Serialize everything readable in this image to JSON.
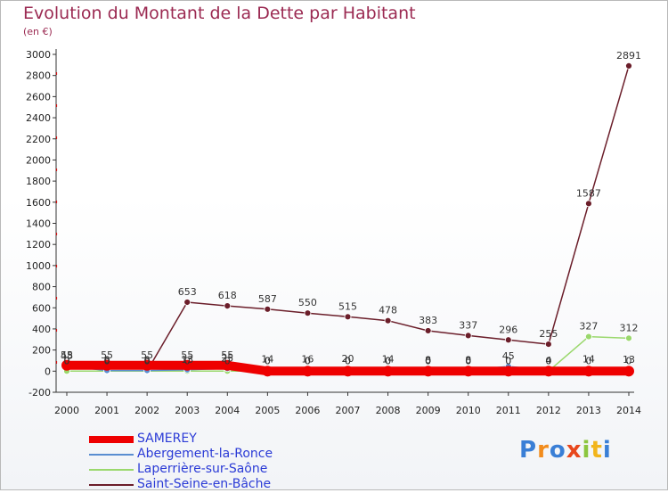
{
  "title": "Evolution du Montant de la Dette par Habitant",
  "subtitle": "(en €)",
  "logo_text": "Proxiti",
  "chart_data": {
    "type": "line",
    "title": "Evolution du Montant de la Dette par Habitant",
    "subtitle": "(en €)",
    "x": [
      "2000",
      "2001",
      "2002",
      "2003",
      "2004",
      "2005",
      "2006",
      "2007",
      "2008",
      "2009",
      "2010",
      "2011",
      "2012",
      "2013",
      "2014"
    ],
    "ylim": [
      -200,
      3000
    ],
    "yticks": [
      -200,
      0,
      200,
      400,
      600,
      800,
      1000,
      1200,
      1400,
      1600,
      1800,
      2000,
      2200,
      2400,
      2600,
      2800,
      3000
    ],
    "grid": false,
    "legend_position": "bottom-left",
    "series": [
      {
        "name": "SAMEREY",
        "color": "#ee0000",
        "values": [
          55,
          55,
          55,
          55,
          55,
          0,
          0,
          0,
          0,
          0,
          0,
          0,
          0,
          0,
          0
        ],
        "labels": [
          "55",
          "55",
          "55",
          "55",
          "55",
          "0",
          "0",
          "0",
          "0",
          "0",
          "0",
          "0",
          "0",
          "0",
          "0"
        ]
      },
      {
        "name": "Abergement-la-Ronce",
        "color": "#5a8ed1",
        "values": [
          48,
          6,
          6,
          13,
          25,
          14,
          16,
          20,
          14,
          8,
          8,
          45,
          4,
          14,
          13
        ],
        "labels": [
          "48",
          "6",
          "6",
          "13",
          "25",
          "14",
          "16",
          "20",
          "14",
          "8",
          "8",
          "45",
          "4",
          "14",
          "13"
        ]
      },
      {
        "name": "Laperrière-sur-Saône",
        "color": "#9ad86c",
        "values": [
          0,
          0,
          0,
          0,
          0,
          0,
          0,
          0,
          0,
          0,
          0,
          0,
          0,
          327,
          312
        ],
        "labels": [
          "0",
          "0",
          "0",
          "0",
          "0",
          "0",
          "0",
          "0",
          "0",
          "0",
          "0",
          "0",
          "0",
          "327",
          "312"
        ]
      },
      {
        "name": "Saint-Seine-en-Bâche",
        "color": "#6b1e2a",
        "values": [
          0,
          0,
          0,
          653,
          618,
          587,
          550,
          515,
          478,
          383,
          337,
          296,
          255,
          1587,
          2891
        ],
        "labels": [
          "0",
          "0",
          "0",
          "653",
          "618",
          "587",
          "550",
          "515",
          "478",
          "383",
          "337",
          "296",
          "255",
          "1587",
          "2891"
        ]
      }
    ]
  }
}
